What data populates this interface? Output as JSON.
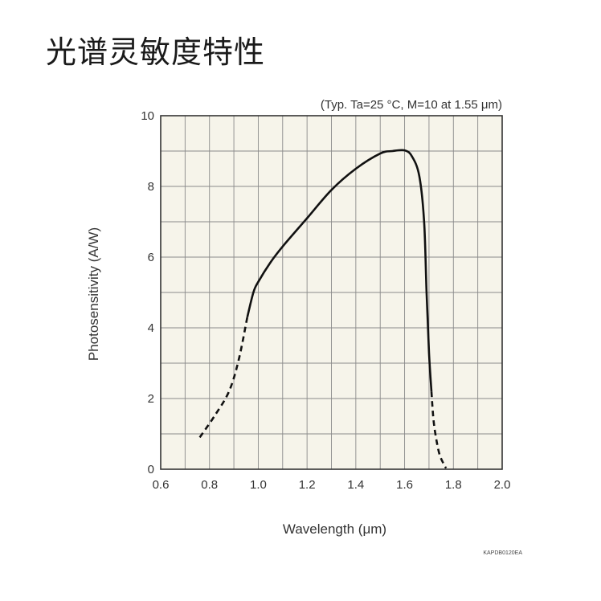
{
  "page": {
    "title": "光谱灵敏度特性",
    "figure_code": "KAPDB0120EA"
  },
  "chart_data": {
    "type": "line",
    "annotation": "(Typ. Ta=25 °C, M=10 at 1.55 μm)",
    "xlabel": "Wavelength (μm)",
    "ylabel": "Photosensitivity (A/W)",
    "xlim": [
      0.6,
      2.0
    ],
    "ylim": [
      0,
      10
    ],
    "x_ticks": [
      "0.6",
      "0.8",
      "1.0",
      "1.2",
      "1.4",
      "1.6",
      "1.8",
      "2.0"
    ],
    "y_ticks": [
      "0",
      "2",
      "4",
      "6",
      "8",
      "10"
    ],
    "grid": true,
    "series": [
      {
        "style": "dashed",
        "points": [
          [
            0.76,
            0.9
          ],
          [
            0.82,
            1.5
          ],
          [
            0.88,
            2.2
          ],
          [
            0.92,
            3.1
          ],
          [
            0.955,
            4.3
          ]
        ]
      },
      {
        "style": "solid",
        "points": [
          [
            0.955,
            4.3
          ],
          [
            0.98,
            5.0
          ],
          [
            1.0,
            5.3
          ],
          [
            1.05,
            5.85
          ],
          [
            1.1,
            6.3
          ],
          [
            1.2,
            7.1
          ],
          [
            1.3,
            7.9
          ],
          [
            1.4,
            8.5
          ],
          [
            1.5,
            8.93
          ],
          [
            1.55,
            9.0
          ],
          [
            1.6,
            9.02
          ],
          [
            1.63,
            8.85
          ],
          [
            1.66,
            8.3
          ],
          [
            1.68,
            7.0
          ],
          [
            1.69,
            5.0
          ],
          [
            1.7,
            3.3
          ],
          [
            1.71,
            2.2
          ]
        ]
      },
      {
        "style": "dashed",
        "points": [
          [
            1.71,
            2.2
          ],
          [
            1.72,
            1.3
          ],
          [
            1.74,
            0.5
          ],
          [
            1.76,
            0.15
          ],
          [
            1.77,
            0.03
          ]
        ]
      }
    ]
  }
}
